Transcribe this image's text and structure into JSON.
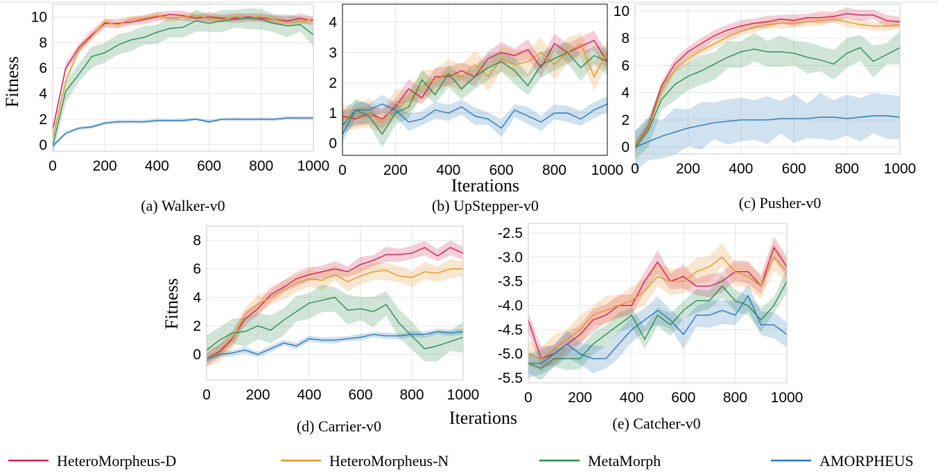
{
  "colors": {
    "HeteroMorpheus-D": "#cf1f4f",
    "HeteroMorpheus-N": "#e6922a",
    "MetaMorph": "#2b8a4e",
    "AMORPHEUS": "#2878b5"
  },
  "legend": [
    "HeteroMorpheus-D",
    "HeteroMorpheus-N",
    "MetaMorph",
    "AMORPHEUS"
  ],
  "xlabel_top": "Iterations",
  "xlabel_bottom": "Iterations",
  "chart_data": [
    {
      "type": "line",
      "caption": "(a) Walker-v0",
      "ylabel": "Fitness",
      "xlabel": "",
      "xlim": [
        0,
        1000
      ],
      "ylim": [
        -0.5,
        11
      ],
      "xticks": [
        0,
        200,
        400,
        600,
        800,
        1000
      ],
      "yticks": [
        0,
        2,
        4,
        6,
        8,
        10
      ],
      "x": [
        0,
        50,
        100,
        150,
        200,
        250,
        300,
        350,
        400,
        450,
        500,
        550,
        600,
        650,
        700,
        750,
        800,
        850,
        900,
        950,
        1000
      ],
      "series": [
        {
          "name": "HeteroMorpheus-D",
          "values": [
            1.2,
            6.0,
            7.6,
            8.6,
            9.5,
            9.5,
            9.6,
            9.8,
            10.0,
            10.2,
            10.1,
            9.9,
            10.0,
            9.9,
            9.9,
            10.0,
            9.9,
            9.8,
            9.7,
            9.9,
            9.7
          ],
          "band": 0.4
        },
        {
          "name": "HeteroMorpheus-N",
          "values": [
            0.5,
            5.0,
            7.4,
            8.5,
            9.6,
            9.4,
            9.8,
            9.9,
            10.1,
            9.9,
            10.0,
            10.1,
            9.9,
            9.8,
            10.0,
            9.9,
            10.0,
            9.8,
            9.6,
            9.7,
            9.8
          ],
          "band": 0.3
        },
        {
          "name": "MetaMorph",
          "values": [
            -0.1,
            4.2,
            5.5,
            6.9,
            7.2,
            7.8,
            8.2,
            8.4,
            8.8,
            9.1,
            9.2,
            9.7,
            9.5,
            9.7,
            9.8,
            9.9,
            9.8,
            9.5,
            9.3,
            9.4,
            8.6
          ],
          "band": 0.9
        },
        {
          "name": "AMORPHEUS",
          "values": [
            -0.1,
            0.9,
            1.3,
            1.4,
            1.7,
            1.8,
            1.8,
            1.8,
            1.9,
            1.9,
            1.9,
            2.0,
            1.8,
            2.0,
            2.0,
            2.0,
            2.0,
            2.0,
            2.1,
            2.1,
            2.1
          ],
          "band": 0.15
        }
      ]
    },
    {
      "type": "line",
      "caption": "(b) UpStepper-v0",
      "ylabel": "",
      "xlabel": "Iterations",
      "xlim": [
        0,
        1000
      ],
      "ylim": [
        -0.4,
        4.6
      ],
      "xticks": [
        0,
        200,
        400,
        600,
        800,
        1000
      ],
      "yticks": [
        0,
        1,
        2,
        3,
        4
      ],
      "x": [
        0,
        50,
        100,
        150,
        200,
        250,
        300,
        350,
        400,
        450,
        500,
        550,
        600,
        650,
        700,
        750,
        800,
        850,
        900,
        950,
        1000
      ],
      "series": [
        {
          "name": "HeteroMorpheus-D",
          "values": [
            0.9,
            0.8,
            1.0,
            0.8,
            1.2,
            1.8,
            1.5,
            2.2,
            2.2,
            2.4,
            2.2,
            2.8,
            3.0,
            2.9,
            3.1,
            2.5,
            3.3,
            3.0,
            3.2,
            3.4,
            2.7
          ],
          "band": 0.35
        },
        {
          "name": "HeteroMorpheus-N",
          "values": [
            0.8,
            0.9,
            1.0,
            0.7,
            1.3,
            1.4,
            1.9,
            2.1,
            2.3,
            2.2,
            2.6,
            2.2,
            2.8,
            2.6,
            2.7,
            3.0,
            2.6,
            3.0,
            3.3,
            2.2,
            3.0
          ],
          "band": 0.5
        },
        {
          "name": "MetaMorph",
          "values": [
            0.6,
            1.1,
            0.9,
            0.3,
            1.0,
            1.2,
            2.1,
            1.6,
            2.3,
            1.8,
            2.2,
            2.5,
            2.7,
            2.4,
            1.9,
            2.6,
            2.8,
            3.0,
            2.5,
            2.9,
            2.7
          ],
          "band": 0.45
        },
        {
          "name": "AMORPHEUS",
          "values": [
            0.3,
            1.1,
            1.1,
            1.3,
            1.1,
            0.7,
            0.8,
            1.1,
            1.0,
            1.2,
            0.9,
            0.8,
            0.5,
            1.1,
            0.9,
            0.7,
            1.0,
            1.0,
            0.8,
            1.1,
            1.3
          ],
          "band": 0.3
        }
      ]
    },
    {
      "type": "line",
      "caption": "(c) Pusher-v0",
      "ylabel": "",
      "xlabel": "",
      "xlim": [
        0,
        1000
      ],
      "ylim": [
        -0.5,
        10.5
      ],
      "xticks": [
        0,
        200,
        400,
        600,
        800,
        1000
      ],
      "yticks": [
        0,
        2,
        4,
        6,
        8,
        10
      ],
      "x": [
        0,
        50,
        100,
        150,
        200,
        250,
        300,
        350,
        400,
        450,
        500,
        550,
        600,
        650,
        700,
        750,
        800,
        850,
        900,
        950,
        1000
      ],
      "series": [
        {
          "name": "HeteroMorpheus-D",
          "values": [
            0.1,
            1.5,
            4.5,
            6.1,
            7.0,
            7.6,
            8.2,
            8.6,
            8.9,
            9.1,
            9.2,
            9.4,
            9.3,
            9.5,
            9.5,
            9.6,
            9.8,
            9.7,
            9.7,
            9.3,
            9.2
          ],
          "band": 0.45
        },
        {
          "name": "HeteroMorpheus-N",
          "values": [
            0.1,
            1.4,
            4.1,
            5.7,
            6.5,
            7.1,
            7.6,
            8.1,
            8.5,
            8.8,
            9.0,
            9.1,
            9.1,
            9.2,
            9.3,
            9.4,
            9.2,
            9.0,
            8.9,
            8.9,
            9.0
          ],
          "band": 0.4
        },
        {
          "name": "MetaMorph",
          "values": [
            0.0,
            1.2,
            3.5,
            4.6,
            5.2,
            5.6,
            6.1,
            6.6,
            7.0,
            7.2,
            7.0,
            7.0,
            6.9,
            6.6,
            6.4,
            6.1,
            6.9,
            7.3,
            6.3,
            6.8,
            7.3
          ],
          "band": 1.2
        },
        {
          "name": "AMORPHEUS",
          "values": [
            0.0,
            0.4,
            0.8,
            1.1,
            1.4,
            1.6,
            1.8,
            1.9,
            2.0,
            2.0,
            2.0,
            2.1,
            2.1,
            2.1,
            2.2,
            2.2,
            2.1,
            2.2,
            2.3,
            2.3,
            2.2
          ],
          "band": 1.8
        }
      ]
    },
    {
      "type": "line",
      "caption": "(d) Carrier-v0",
      "ylabel": "Fitness",
      "xlabel": "",
      "xlim": [
        0,
        1000
      ],
      "ylim": [
        -1.8,
        9
      ],
      "xticks": [
        0,
        200,
        400,
        600,
        800,
        1000
      ],
      "yticks": [
        0,
        2,
        4,
        6,
        8
      ],
      "x": [
        0,
        50,
        100,
        150,
        200,
        250,
        300,
        350,
        400,
        450,
        500,
        550,
        600,
        650,
        700,
        750,
        800,
        850,
        900,
        950,
        1000
      ],
      "series": [
        {
          "name": "HeteroMorpheus-D",
          "values": [
            -0.3,
            0.2,
            1.1,
            2.5,
            3.2,
            4.2,
            4.7,
            5.3,
            5.6,
            5.8,
            6.0,
            5.8,
            6.3,
            6.6,
            7.0,
            7.0,
            7.1,
            7.5,
            6.9,
            7.5,
            7.1
          ],
          "band": 0.55
        },
        {
          "name": "HeteroMorpheus-N",
          "values": [
            -0.3,
            0.1,
            1.0,
            2.8,
            3.5,
            4.0,
            4.5,
            5.0,
            5.3,
            5.2,
            5.6,
            5.1,
            5.5,
            5.8,
            5.9,
            5.5,
            5.4,
            5.8,
            5.7,
            6.0,
            6.0
          ],
          "band": 0.7
        },
        {
          "name": "MetaMorph",
          "values": [
            0.3,
            1.0,
            1.5,
            1.6,
            2.0,
            1.7,
            2.4,
            3.0,
            3.6,
            3.8,
            4.0,
            3.1,
            3.2,
            3.0,
            3.5,
            2.2,
            1.3,
            0.4,
            0.6,
            0.9,
            1.2
          ],
          "band": 1.1
        },
        {
          "name": "AMORPHEUS",
          "values": [
            -0.3,
            0.0,
            0.1,
            0.3,
            0.0,
            0.4,
            0.8,
            0.6,
            1.1,
            1.0,
            1.0,
            1.1,
            1.2,
            1.4,
            1.3,
            1.3,
            1.4,
            1.4,
            1.6,
            1.5,
            1.6
          ],
          "band": 0.25
        }
      ]
    },
    {
      "type": "line",
      "caption": "(e) Catcher-v0",
      "ylabel": "",
      "xlabel": "",
      "xlim": [
        0,
        1000
      ],
      "ylim": [
        -5.6,
        -2.3
      ],
      "xticks": [
        0,
        200,
        400,
        600,
        800,
        1000
      ],
      "yticks": [
        -5.5,
        -5.0,
        -4.5,
        -4.0,
        -3.5,
        -3.0,
        -2.5
      ],
      "ytick_labels": [
        "-5.5",
        "-5.0",
        "-4.5",
        "-4.0",
        "-3.5",
        "-3.0",
        "-2.5"
      ],
      "x": [
        0,
        50,
        100,
        150,
        200,
        250,
        300,
        350,
        400,
        450,
        500,
        550,
        600,
        650,
        700,
        750,
        800,
        850,
        900,
        950,
        1000
      ],
      "series": [
        {
          "name": "HeteroMorpheus-D",
          "values": [
            -4.3,
            -5.1,
            -5.0,
            -4.8,
            -4.6,
            -4.3,
            -4.2,
            -4.0,
            -4.0,
            -3.5,
            -3.1,
            -3.5,
            -3.4,
            -3.6,
            -3.6,
            -3.5,
            -3.3,
            -3.3,
            -3.6,
            -2.8,
            -3.2
          ],
          "band": 0.25
        },
        {
          "name": "HeteroMorpheus-N",
          "values": [
            -5.0,
            -5.1,
            -4.9,
            -4.7,
            -4.5,
            -4.2,
            -4.1,
            -4.0,
            -3.9,
            -3.7,
            -3.4,
            -3.5,
            -3.5,
            -3.3,
            -3.2,
            -3.0,
            -3.3,
            -3.4,
            -3.6,
            -3.0,
            -3.3
          ],
          "band": 0.3
        },
        {
          "name": "MetaMorph",
          "values": [
            -5.2,
            -5.3,
            -5.1,
            -5.1,
            -5.1,
            -4.8,
            -4.6,
            -4.4,
            -4.2,
            -4.7,
            -4.2,
            -4.4,
            -4.1,
            -3.9,
            -3.9,
            -3.6,
            -3.9,
            -4.0,
            -4.3,
            -4.0,
            -3.5
          ],
          "band": 0.25
        },
        {
          "name": "AMORPHEUS",
          "values": [
            -5.2,
            -5.2,
            -5.0,
            -4.8,
            -5.0,
            -5.1,
            -5.1,
            -4.8,
            -4.5,
            -4.3,
            -4.1,
            -4.3,
            -4.6,
            -4.2,
            -4.2,
            -4.1,
            -4.2,
            -3.8,
            -4.4,
            -4.4,
            -4.6
          ],
          "band": 0.3
        }
      ]
    }
  ]
}
